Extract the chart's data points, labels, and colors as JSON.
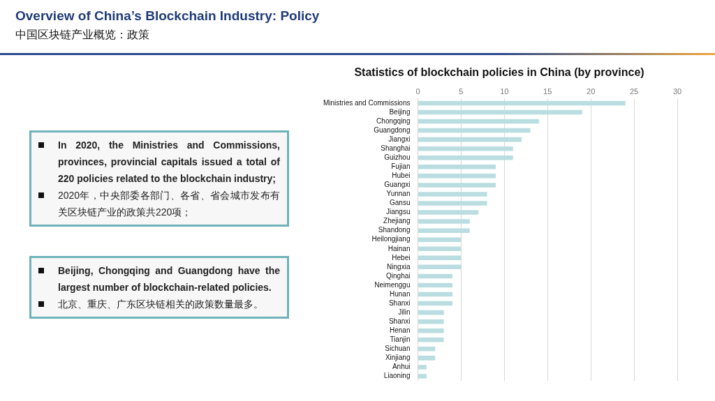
{
  "chart_data": [
    {
      "type": "other",
      "title": "Overview of China’s Blockchain Industry: Policy",
      "subtitle": "中国区块链产业概览：政策",
      "annotations": [
        "In 2020, the Ministries and Commissions, provinces, provincial capitals issued a total of 220 policies related to the blockchain industry;",
        "2020年，中央部委各部门、各省、省会城市发布有关区块链产业的政策共220项；",
        "Beijing, Chongqing and Guangdong have the largest number of blockchain-related policies.",
        "北京、重庆、广东区块链相关的政策数量最多。"
      ]
    },
    {
      "type": "bar",
      "orientation": "horizontal",
      "title": "Statistics of blockchain policies in China (by province)",
      "categories": [
        "Ministries and Commissions",
        "Beijing",
        "Chongqing",
        "Guangdong",
        "Jiangxi",
        "Shanghai",
        "Guizhou",
        "Fujian",
        "Hubei",
        "Guangxi",
        "Yunnan",
        "Gansu",
        "Jiangsu",
        "Zhejiang",
        "Shandong",
        "Heilongjiang",
        "Hainan",
        "Hebei",
        "Ningxia",
        "Qinghai",
        "Neimenggu",
        "Hunan",
        "Shanxi",
        "Jilin",
        "Shanxi",
        "Henan",
        "Tianjin",
        "Sichuan",
        "Xinjiang",
        "Anhui",
        "Liaoning"
      ],
      "values": [
        24,
        19,
        14,
        13,
        12,
        11,
        11,
        9,
        9,
        9,
        8,
        8,
        7,
        6,
        6,
        5,
        5,
        5,
        5,
        4,
        4,
        4,
        4,
        3,
        3,
        3,
        3,
        2,
        2,
        1,
        1
      ],
      "color": "#b9dde0",
      "xlim": [
        0,
        30
      ],
      "xticks": [
        0,
        5,
        10,
        15,
        20,
        25,
        30
      ],
      "grid": "x",
      "legend": false
    }
  ]
}
